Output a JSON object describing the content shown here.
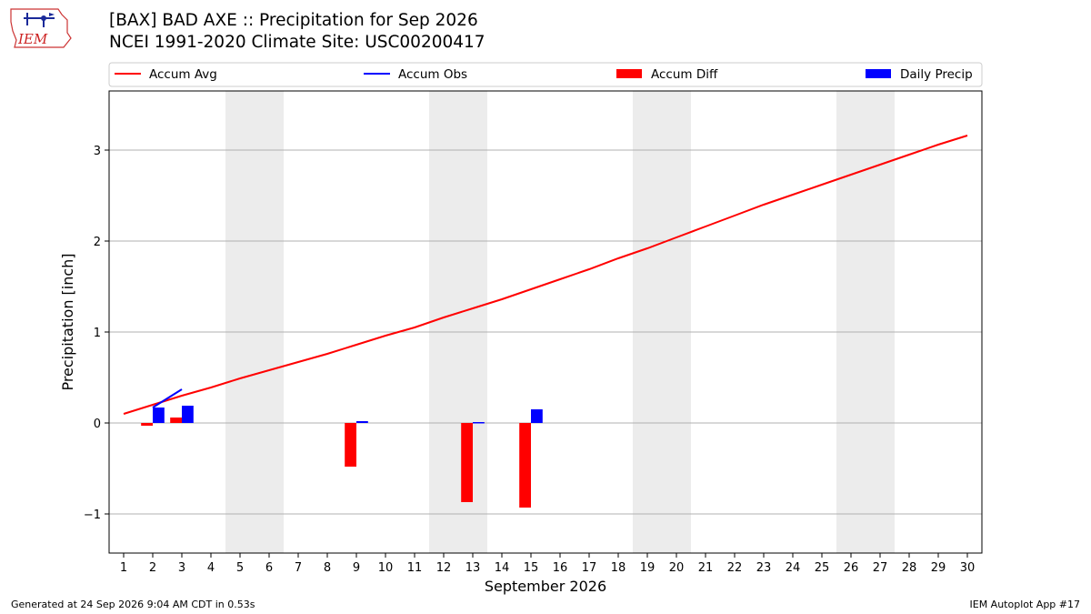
{
  "header": {
    "logo_text": "IEM",
    "title_line1": "[BAX] BAD AXE :: Precipitation for Sep 2026",
    "title_line2": "NCEI 1991-2020 Climate Site: USC00200417"
  },
  "footer": {
    "generated": "Generated at 24 Sep 2026 9:04 AM CDT in 0.53s",
    "app": "IEM Autoplot App #17"
  },
  "colors": {
    "avg": "#ff0000",
    "obs": "#0000ff",
    "diff": "#ff0000",
    "daily": "#0000ff",
    "weekend": "#ececec",
    "grid": "#b0b0b0"
  },
  "chart_data": {
    "type": "bar",
    "xlabel": "September 2026",
    "ylabel": "Precipitation [inch]",
    "xlim": [
      0.5,
      30.5
    ],
    "ylim": [
      -1.43,
      3.65
    ],
    "yticks": [
      -1,
      0,
      1,
      2,
      3
    ],
    "ytick_labels": [
      "−1",
      "0",
      "1",
      "2",
      "3"
    ],
    "x": [
      1,
      2,
      3,
      4,
      5,
      6,
      7,
      8,
      9,
      10,
      11,
      12,
      13,
      14,
      15,
      16,
      17,
      18,
      19,
      20,
      21,
      22,
      23,
      24,
      25,
      26,
      27,
      28,
      29,
      30
    ],
    "weekend_days": [
      5,
      6,
      12,
      13,
      19,
      20,
      26,
      27
    ],
    "grid": "horizontal",
    "legend_position": "top",
    "legend": [
      "Accum Avg",
      "Accum Obs",
      "Accum Diff",
      "Daily Precip"
    ],
    "series": [
      {
        "name": "Accum Avg",
        "kind": "line",
        "values": [
          0.1,
          0.2,
          0.3,
          0.39,
          0.49,
          0.58,
          0.67,
          0.76,
          0.86,
          0.96,
          1.05,
          1.16,
          1.26,
          1.36,
          1.47,
          1.58,
          1.69,
          1.81,
          1.92,
          2.04,
          2.16,
          2.28,
          2.4,
          2.51,
          2.62,
          2.73,
          2.84,
          2.95,
          3.06,
          3.16
        ]
      },
      {
        "name": "Accum Obs",
        "kind": "line",
        "x": [
          2,
          3
        ],
        "values": [
          0.17,
          0.37
        ]
      },
      {
        "name": "Accum Diff",
        "kind": "bar",
        "x": [
          2,
          3,
          9,
          13,
          15
        ],
        "values": [
          -0.03,
          0.06,
          -0.48,
          -0.87,
          -0.93
        ]
      },
      {
        "name": "Daily Precip",
        "kind": "bar",
        "x": [
          2,
          3,
          9,
          13,
          15
        ],
        "values": [
          0.17,
          0.19,
          0.02,
          0.01,
          0.15
        ]
      }
    ]
  }
}
